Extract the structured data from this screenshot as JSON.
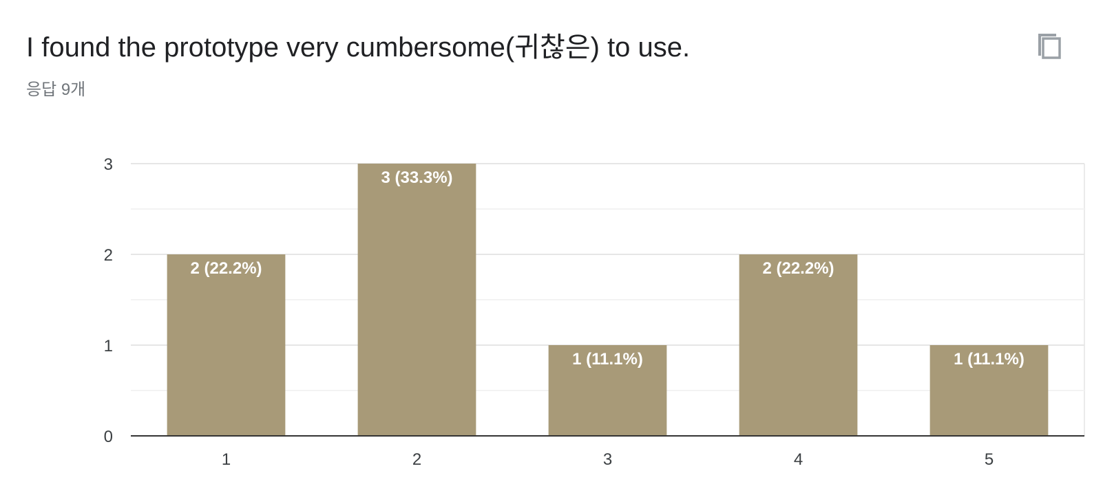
{
  "question": {
    "title": "I found the prototype very cumbersome(귀찮은) to use.",
    "responses_label": "응답 9개"
  },
  "icons": {
    "copy": "copy-icon"
  },
  "colors": {
    "bar": "#a89a78",
    "grid": "#ebebeb",
    "axis": "#333333"
  },
  "chart_data": {
    "type": "bar",
    "categories": [
      "1",
      "2",
      "3",
      "4",
      "5"
    ],
    "values": [
      2,
      3,
      1,
      2,
      1
    ],
    "data_labels": [
      "2 (22.2%)",
      "3 (33.3%)",
      "1 (11.1%)",
      "2 (22.2%)",
      "1 (11.1%)"
    ],
    "yticks": [
      "0",
      "1",
      "2",
      "3"
    ],
    "ylim": [
      0,
      3
    ],
    "grid": true,
    "legend": "none"
  }
}
